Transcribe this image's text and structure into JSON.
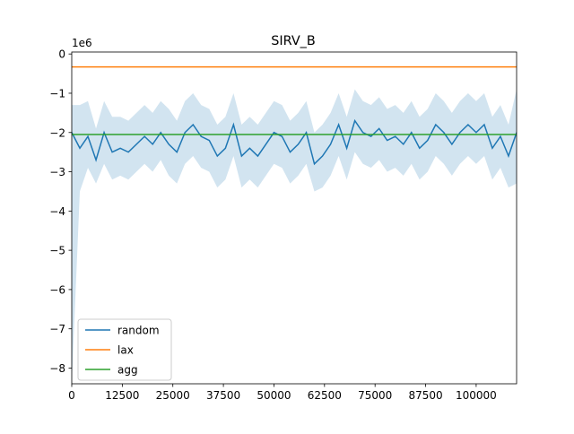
{
  "chart_data": {
    "type": "line",
    "title": "SIRV_B",
    "y_offset_label": "1e6",
    "xlim": [
      0,
      110000
    ],
    "ylim": [
      -8.4,
      0.05
    ],
    "xticks": [
      0,
      12500,
      25000,
      37500,
      50000,
      62500,
      75000,
      87500,
      100000
    ],
    "yticks": [
      {
        "value": -8,
        "label": "−8"
      },
      {
        "value": -7,
        "label": "−7"
      },
      {
        "value": -6,
        "label": "−6"
      },
      {
        "value": -5,
        "label": "−5"
      },
      {
        "value": -4,
        "label": "−4"
      },
      {
        "value": -3,
        "label": "−3"
      },
      {
        "value": -2,
        "label": "−2"
      },
      {
        "value": -1,
        "label": "−1"
      },
      0
    ],
    "legend": "lower left",
    "series": [
      {
        "name": "random",
        "color": "#1f77b4",
        "x": [
          0,
          2000,
          4000,
          6000,
          8000,
          10000,
          12000,
          14000,
          16000,
          18000,
          20000,
          22000,
          24000,
          26000,
          28000,
          30000,
          32000,
          34000,
          36000,
          38000,
          40000,
          42000,
          44000,
          46000,
          48000,
          50000,
          52000,
          54000,
          56000,
          58000,
          60000,
          62000,
          64000,
          66000,
          68000,
          70000,
          72000,
          74000,
          76000,
          78000,
          80000,
          82000,
          84000,
          86000,
          88000,
          90000,
          92000,
          94000,
          96000,
          98000,
          100000,
          102000,
          104000,
          106000,
          108000,
          110000
        ],
        "values": [
          -2.0,
          -2.4,
          -2.1,
          -2.7,
          -2.0,
          -2.5,
          -2.4,
          -2.5,
          -2.3,
          -2.1,
          -2.3,
          -2.0,
          -2.3,
          -2.5,
          -2.0,
          -1.8,
          -2.1,
          -2.2,
          -2.6,
          -2.4,
          -1.8,
          -2.6,
          -2.4,
          -2.6,
          -2.3,
          -2.0,
          -2.1,
          -2.5,
          -2.3,
          -2.0,
          -2.8,
          -2.6,
          -2.3,
          -1.8,
          -2.4,
          -1.7,
          -2.0,
          -2.1,
          -1.9,
          -2.2,
          -2.1,
          -2.3,
          -2.0,
          -2.4,
          -2.2,
          -1.8,
          -2.0,
          -2.3,
          -2.0,
          -1.8,
          -2.0,
          -1.8,
          -2.4,
          -2.1,
          -2.6,
          -2.0
        ],
        "lower": [
          -8.4,
          -3.5,
          -2.9,
          -3.3,
          -2.8,
          -3.2,
          -3.1,
          -3.2,
          -3.0,
          -2.8,
          -3.0,
          -2.7,
          -3.1,
          -3.3,
          -2.8,
          -2.6,
          -2.9,
          -3.0,
          -3.4,
          -3.2,
          -2.6,
          -3.4,
          -3.2,
          -3.4,
          -3.1,
          -2.8,
          -2.9,
          -3.3,
          -3.1,
          -2.8,
          -3.5,
          -3.4,
          -3.1,
          -2.6,
          -3.2,
          -2.5,
          -2.8,
          -2.9,
          -2.7,
          -3.0,
          -2.9,
          -3.1,
          -2.8,
          -3.2,
          -3.0,
          -2.6,
          -2.8,
          -3.1,
          -2.8,
          -2.6,
          -2.8,
          -2.6,
          -3.2,
          -2.9,
          -3.4,
          -3.3
        ],
        "upper": [
          -1.3,
          -1.3,
          -1.2,
          -1.9,
          -1.2,
          -1.6,
          -1.6,
          -1.7,
          -1.5,
          -1.3,
          -1.5,
          -1.2,
          -1.4,
          -1.7,
          -1.2,
          -1.0,
          -1.3,
          -1.4,
          -1.8,
          -1.6,
          -1.0,
          -1.8,
          -1.6,
          -1.8,
          -1.5,
          -1.2,
          -1.3,
          -1.7,
          -1.5,
          -1.2,
          -2.0,
          -1.8,
          -1.5,
          -1.0,
          -1.6,
          -0.9,
          -1.2,
          -1.3,
          -1.1,
          -1.4,
          -1.3,
          -1.5,
          -1.2,
          -1.6,
          -1.4,
          -1.0,
          -1.2,
          -1.5,
          -1.2,
          -1.0,
          -1.2,
          -1.0,
          -1.6,
          -1.3,
          -1.8,
          -0.9
        ]
      },
      {
        "name": "lax",
        "color": "#ff7f0e",
        "x": [
          0,
          110000
        ],
        "values": [
          -0.33,
          -0.33
        ]
      },
      {
        "name": "agg",
        "color": "#2ca02c",
        "x": [
          0,
          110000
        ],
        "values": [
          -2.05,
          -2.05
        ]
      }
    ]
  }
}
